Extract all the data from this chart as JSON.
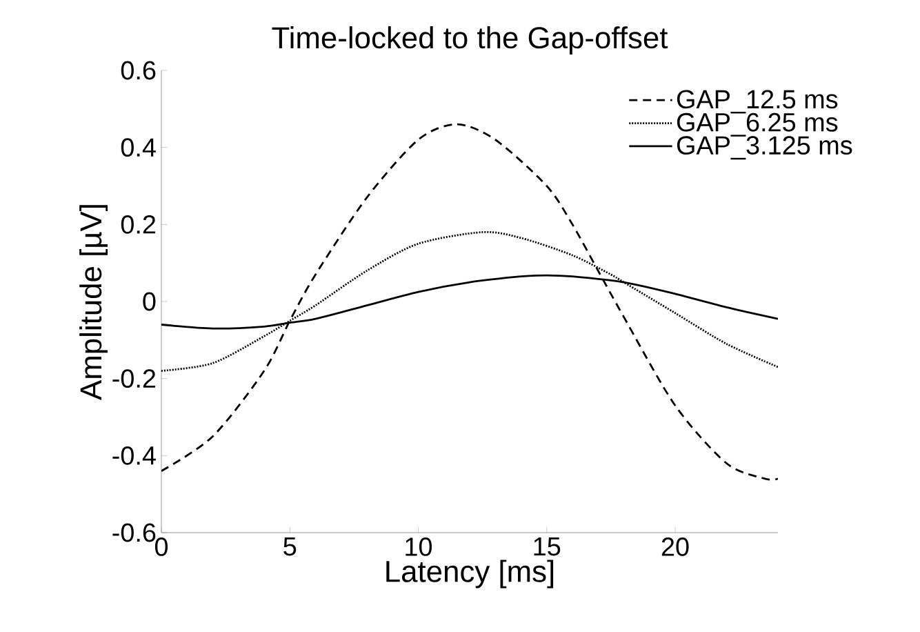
{
  "chart_data": {
    "type": "line",
    "title": "Time-locked to the Gap-offset",
    "xlabel": "Latency [ms]",
    "ylabel": "Amplitude [µV]",
    "xlim": [
      0,
      24
    ],
    "xticks": [
      0,
      5,
      10,
      15,
      20
    ],
    "ylim": [
      -0.6,
      0.6
    ],
    "yticks": [
      -0.6,
      -0.4,
      -0.2,
      0,
      0.2,
      0.4,
      0.6
    ],
    "legend": "top right",
    "grid": false,
    "marker": "none",
    "x": [
      0,
      2,
      4,
      5,
      6,
      8,
      10,
      11.5,
      13,
      15,
      16,
      17,
      18,
      20,
      22,
      23.5,
      24
    ],
    "series": [
      {
        "name": "GAP_12.5 ms",
        "color": "#000000",
        "line_style": "dashed",
        "values": [
          -0.44,
          -0.35,
          -0.18,
          -0.05,
          0.07,
          0.27,
          0.42,
          0.46,
          0.42,
          0.3,
          0.2,
          0.08,
          -0.04,
          -0.27,
          -0.42,
          -0.46,
          -0.46
        ]
      },
      {
        "name": "GAP_6.25 ms",
        "color": "#000000",
        "line_style": "dotted",
        "x": [
          0,
          2,
          4,
          5,
          6,
          8,
          10,
          12.5,
          14,
          16,
          17.5,
          18,
          20,
          22,
          24
        ],
        "values": [
          -0.18,
          -0.16,
          -0.09,
          -0.05,
          -0.01,
          0.08,
          0.15,
          0.18,
          0.165,
          0.12,
          0.07,
          0.05,
          -0.03,
          -0.11,
          -0.17
        ]
      },
      {
        "name": "GAP_3.125 ms",
        "color": "#000000",
        "line_style": "solid",
        "x": [
          0,
          2,
          4,
          5,
          6,
          8,
          10,
          12,
          14,
          15,
          16,
          18,
          20,
          22,
          24
        ],
        "values": [
          -0.06,
          -0.07,
          -0.065,
          -0.055,
          -0.045,
          -0.01,
          0.025,
          0.05,
          0.065,
          0.068,
          0.065,
          0.05,
          0.02,
          -0.015,
          -0.045
        ]
      }
    ]
  }
}
